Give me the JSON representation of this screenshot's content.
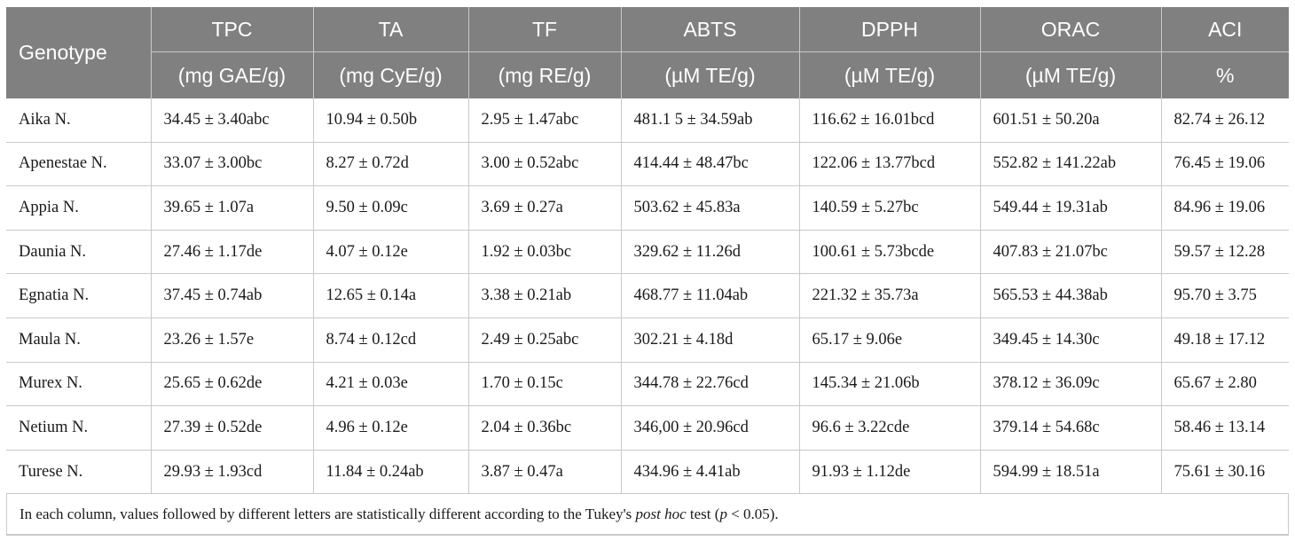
{
  "table": {
    "header": {
      "genotype": "Genotype",
      "columns": [
        {
          "name": "TPC",
          "unit": "(mg GAE/g)"
        },
        {
          "name": "TA",
          "unit": "(mg CyE/g)"
        },
        {
          "name": "TF",
          "unit": "(mg RE/g)"
        },
        {
          "name": "ABTS",
          "unit": "(µM TE/g)"
        },
        {
          "name": "DPPH",
          "unit": "(µM TE/g)"
        },
        {
          "name": "ORAC",
          "unit": "(µM TE/g)"
        },
        {
          "name": "ACI",
          "unit": "%"
        }
      ]
    },
    "rows": [
      [
        "Aika N.",
        "34.45 ± 3.40abc",
        "10.94 ± 0.50b",
        "2.95 ± 1.47abc",
        "481.1 5 ± 34.59ab",
        "116.62 ± 16.01bcd",
        "601.51 ± 50.20a",
        "82.74 ± 26.12"
      ],
      [
        "Apenestae N.",
        "33.07 ± 3.00bc",
        "  8.27 ± 0.72d",
        "3.00 ± 0.52abc",
        " 414.44 ± 48.47bc",
        "122.06 ± 13.77bcd",
        "552.82 ± 141.22ab",
        "76.45 ± 19.06"
      ],
      [
        "Appia N.",
        "39.65 ± 1.07a",
        "9.50 ± 0.09c",
        "3.69 ± 0.27a",
        "503.62 ± 45.83a",
        "140.59 ± 5.27bc",
        "549.44 ± 19.31ab",
        "84.96 ± 19.06"
      ],
      [
        "Daunia N.",
        "27.46 ± 1.17de",
        "4.07 ± 0.12e",
        "1.92 ± 0.03bc",
        "329.62 ± 11.26d",
        "100.61 ± 5.73bcde",
        "407.83 ± 21.07bc",
        "59.57 ± 12.28"
      ],
      [
        "Egnatia N.",
        "37.45 ± 0.74ab",
        "12.65 ± 0.14a",
        "3.38 ± 0.21ab",
        "468.77 ± 11.04ab",
        "221.32 ± 35.73a",
        "565.53 ± 44.38ab",
        "95.70 ± 3.75"
      ],
      [
        "Maula N.",
        "23.26 ± 1.57e",
        "8.74 ± 0.12cd",
        "2.49 ± 0.25abc",
        "302.21 ± 4.18d",
        "  65.17 ± 9.06e",
        "349.45 ± 14.30c",
        "49.18 ± 17.12"
      ],
      [
        "Murex N.",
        "25.65 ± 0.62de",
        "4.21 ± 0.03e",
        "1.70 ± 0.15c",
        "344.78 ± 22.76cd",
        "145.34 ± 21.06b",
        "378.12 ± 36.09c",
        "65.67 ± 2.80"
      ],
      [
        "Netium N.",
        "27.39 ± 0.52de",
        "4.96 ± 0.12e",
        "2.04 ± 0.36bc",
        "346,00 ± 20.96cd",
        "    96.6 ± 3.22cde",
        "379.14 ± 54.68c",
        "58.46 ± 13.14"
      ],
      [
        "Turese N.",
        "29.93 ± 1.93cd",
        "11.84 ± 0.24ab",
        "3.87 ± 0.47a",
        "434.96 ± 4.41ab",
        "91.93 ± 1.12de",
        "594.99 ± 18.51a",
        "75.61 ± 30.16"
      ]
    ],
    "footnote": {
      "before": "In each column, values followed by different letters are statistically different according to the Tukey's ",
      "italic1": "post hoc",
      "middle": " test (",
      "italic2": "p",
      "after": " < 0.05)."
    }
  }
}
